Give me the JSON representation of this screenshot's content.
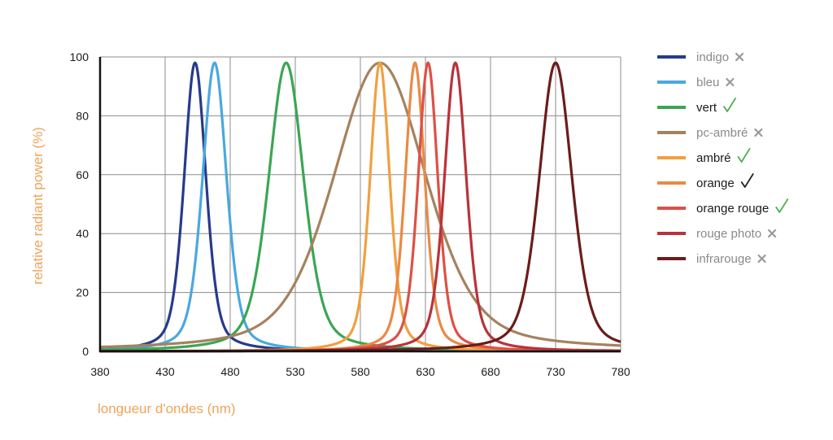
{
  "chart_data": {
    "type": "line",
    "title": "",
    "xlabel": "longueur d'ondes (nm)",
    "ylabel": "relative radiant power (%)",
    "xlim": [
      380,
      780
    ],
    "ylim": [
      0,
      100
    ],
    "xticks": [
      380,
      430,
      480,
      530,
      580,
      630,
      680,
      730,
      780
    ],
    "yticks": [
      0,
      20,
      40,
      60,
      80,
      100
    ],
    "grid": true,
    "legend_position": "right",
    "label_color": "#f0a35a",
    "series": [
      {
        "name": "indigo",
        "peak": 453,
        "fwhm": 20,
        "color": "#273a8c",
        "status": "cross",
        "status_color": "#999999",
        "label_color": "#8a8a8a"
      },
      {
        "name": "bleu",
        "peak": 468,
        "fwhm": 22,
        "color": "#4aa8df",
        "status": "cross",
        "status_color": "#999999",
        "label_color": "#8a8a8a"
      },
      {
        "name": "vert",
        "peak": 523,
        "fwhm": 32,
        "color": "#3aa655",
        "status": "check",
        "status_color": "#4caf50",
        "label_color": "#1a1a1a"
      },
      {
        "name": "pc-ambré",
        "peak": 595,
        "fwhm": 85,
        "color": "#a5825e",
        "status": "cross",
        "status_color": "#999999",
        "label_color": "#8a8a8a"
      },
      {
        "name": "ambré",
        "peak": 595,
        "fwhm": 18,
        "color": "#f0a040",
        "status": "check",
        "status_color": "#4caf50",
        "label_color": "#1a1a1a"
      },
      {
        "name": "orange",
        "peak": 622,
        "fwhm": 18,
        "color": "#e88a45",
        "status": "check",
        "status_color": "#222222",
        "label_color": "#1a1a1a"
      },
      {
        "name": "orange rouge",
        "peak": 632,
        "fwhm": 18,
        "color": "#dd5145",
        "status": "check",
        "status_color": "#4caf50",
        "label_color": "#1a1a1a"
      },
      {
        "name": "rouge photo",
        "peak": 653,
        "fwhm": 20,
        "color": "#b8333a",
        "status": "cross",
        "status_color": "#999999",
        "label_color": "#8a8a8a"
      },
      {
        "name": "infrarouge",
        "peak": 730,
        "fwhm": 30,
        "color": "#6b1c1c",
        "status": "cross",
        "status_color": "#999999",
        "label_color": "#8a8a8a"
      }
    ]
  }
}
